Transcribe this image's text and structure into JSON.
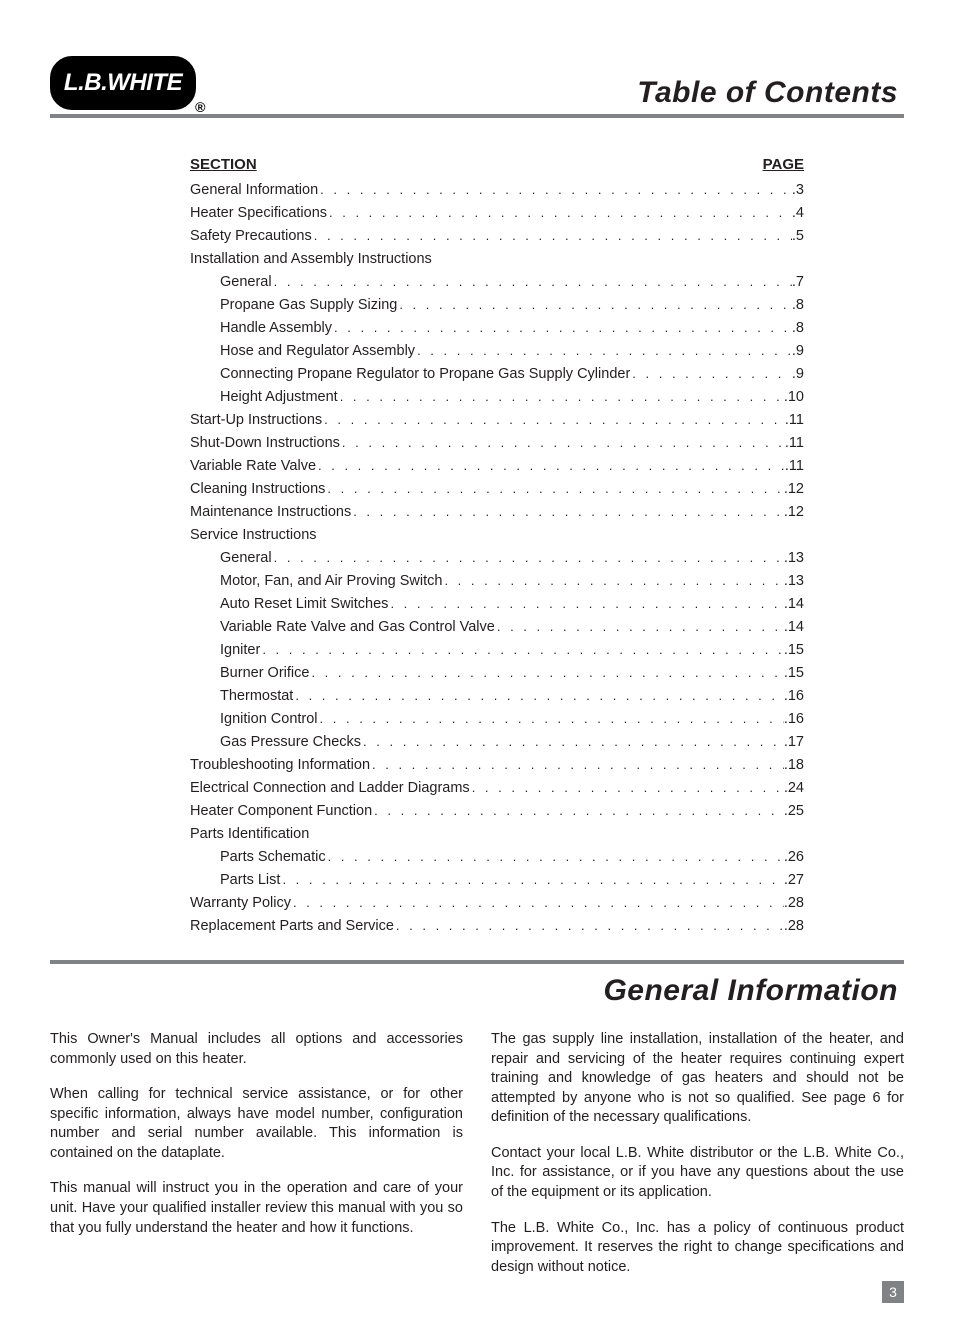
{
  "logo_text": "L.B.WHITE",
  "titles": {
    "toc": "Table of Contents",
    "general_info": "General Information"
  },
  "toc": {
    "section_label": "SECTION",
    "page_label": "PAGE",
    "entries": [
      {
        "label": "General Information",
        "page": "3",
        "indent": false
      },
      {
        "label": "Heater Specifications",
        "page": "4",
        "indent": false
      },
      {
        "label": "Safety Precautions",
        "page": "5",
        "indent": false
      },
      {
        "label": "Installation and Assembly Instructions",
        "page": null,
        "indent": false
      },
      {
        "label": "General",
        "page": "7",
        "indent": true
      },
      {
        "label": "Propane Gas Supply Sizing",
        "page": "8",
        "indent": true
      },
      {
        "label": "Handle Assembly",
        "page": "8",
        "indent": true
      },
      {
        "label": "Hose and Regulator Assembly",
        "page": "9",
        "indent": true
      },
      {
        "label": "Connecting Propane Regulator to Propane Gas Supply Cylinder",
        "page": "9",
        "indent": true
      },
      {
        "label": "Height Adjustment",
        "page": "10",
        "indent": true
      },
      {
        "label": "Start-Up Instructions",
        "page": "11",
        "indent": false
      },
      {
        "label": "Shut-Down Instructions",
        "page": "11",
        "indent": false
      },
      {
        "label": "Variable Rate Valve",
        "page": "11",
        "indent": false
      },
      {
        "label": "Cleaning Instructions",
        "page": "12",
        "indent": false
      },
      {
        "label": "Maintenance Instructions",
        "page": "12",
        "indent": false
      },
      {
        "label": "Service Instructions",
        "page": null,
        "indent": false
      },
      {
        "label": "General",
        "page": "13",
        "indent": true
      },
      {
        "label": "Motor, Fan, and Air Proving Switch",
        "page": "13",
        "indent": true
      },
      {
        "label": "Auto Reset Limit Switches",
        "page": "14",
        "indent": true
      },
      {
        "label": "Variable Rate Valve and Gas Control Valve",
        "page": "14",
        "indent": true
      },
      {
        "label": "Igniter",
        "page": "15",
        "indent": true
      },
      {
        "label": "Burner Orifice",
        "page": "15",
        "indent": true
      },
      {
        "label": "Thermostat",
        "page": "16",
        "indent": true
      },
      {
        "label": "Ignition Control",
        "page": "16",
        "indent": true
      },
      {
        "label": "Gas Pressure Checks",
        "page": "17",
        "indent": true
      },
      {
        "label": "Troubleshooting Information",
        "page": "18",
        "indent": false
      },
      {
        "label": "Electrical Connection and Ladder Diagrams",
        "page": "24",
        "indent": false
      },
      {
        "label": "Heater Component Function",
        "page": "25",
        "indent": false
      },
      {
        "label": "Parts Identification",
        "page": null,
        "indent": false
      },
      {
        "label": "Parts Schematic",
        "page": "26",
        "indent": true
      },
      {
        "label": "Parts List",
        "page": "27",
        "indent": true
      },
      {
        "label": "Warranty Policy",
        "page": "28",
        "indent": false
      },
      {
        "label": "Replacement Parts and Service",
        "page": "28",
        "indent": false
      }
    ]
  },
  "general_info_paragraphs_left": [
    "This Owner's Manual includes all options and accessories commonly used on this heater.",
    "When calling for technical service assistance, or for other specific information, always have model number, configuration number and serial number available.  This information is contained on the dataplate.",
    "This manual will instruct you in the operation and care of your unit. Have your qualified installer review this manual with you so that you fully understand the heater and how it functions."
  ],
  "general_info_paragraphs_right": [
    "The gas supply line installation, installation of the heater, and repair and servicing of the heater requires continuing expert training and knowledge of gas heaters and should not be attempted by anyone who is not so qualified.  See page 6 for definition of the necessary qualifications.",
    "Contact your local L.B. White distributor or the L.B. White Co., Inc. for assistance, or if you have any questions about the use of the equipment or its application.",
    "The L.B. White Co., Inc. has a policy of continuous product improvement.  It reserves the right to change specifications and design without notice."
  ],
  "page_number": "3",
  "colors": {
    "rule": "#808285",
    "text": "#231f20",
    "background": "#ffffff"
  }
}
